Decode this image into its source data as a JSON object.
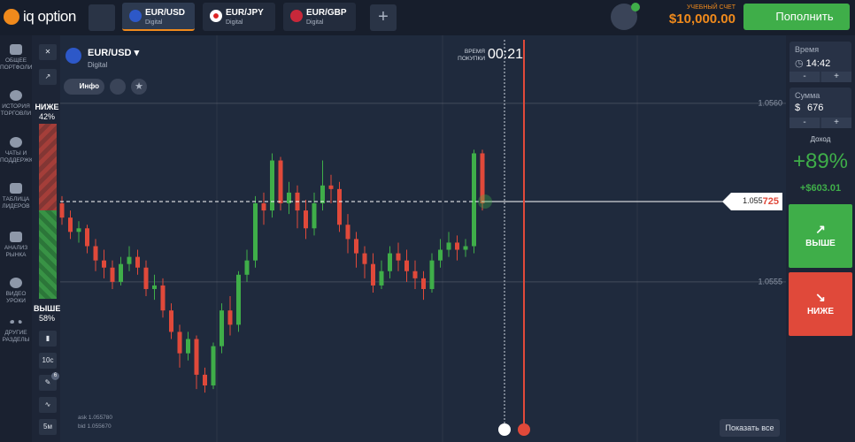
{
  "header": {
    "logo": "iq option",
    "tabs": [
      {
        "name": "EUR/USD",
        "type": "Digital"
      },
      {
        "name": "EUR/JPY",
        "type": "Digital"
      },
      {
        "name": "EUR/GBP",
        "type": "Digital"
      }
    ],
    "account_label": "УЧЕБНЫЙ СЧЕТ",
    "balance": "$10,000.00",
    "deposit_button": "Пополнить"
  },
  "sidebar": {
    "items": [
      "ОБЩЕЕ ПОРТФОЛИО",
      "ИСТОРИЯ ТОРГОВЛИ",
      "ЧАТЫ И ПОДДЕРЖКА",
      "ТАБЛИЦА ЛИДЕРОВ",
      "АНАЛИЗ РЫНКА",
      "ВИДЕО УРОКИ",
      "ДРУГИЕ РАЗДЕЛЫ"
    ]
  },
  "asset": {
    "name": "EUR/USD",
    "type": "Digital",
    "info_button": "Инфо"
  },
  "sentiment": {
    "down_label": "НИЖЕ",
    "down_pct": "42%",
    "up_label": "ВЫШЕ",
    "up_pct": "58%"
  },
  "tools": {
    "indicator_count": "6",
    "interval": "10с",
    "timeframe": "5м"
  },
  "purchase_time": {
    "label": "ВРЕМЯ ПОКУПКИ",
    "value": "00:21"
  },
  "chart_data": {
    "type": "candlestick",
    "ylim": [
      1.055064,
      1.056178
    ],
    "yticks": [
      1.0555,
      {
        "value": 1.056,
        "label": "1.0560"
      }
    ],
    "grid": true,
    "up_color": "#3fae49",
    "down_color": "#e0493a",
    "open": [
      1.05572,
      1.05568,
      1.05564,
      1.05565,
      1.0556,
      1.05556,
      1.05554,
      1.0555,
      1.05555,
      1.05557,
      1.05554,
      1.05548,
      1.05549,
      1.05542,
      1.05536,
      1.0553,
      1.05534,
      1.05524,
      1.05521,
      1.05532,
      1.05542,
      1.05538,
      1.05552,
      1.05556,
      1.05572,
      1.0557,
      1.05584,
      1.05572,
      1.05575,
      1.0557,
      1.05565,
      1.05572,
      1.05577,
      1.05576,
      1.05566,
      1.05562,
      1.05558,
      1.05555,
      1.05549,
      1.05553,
      1.05558,
      1.05556,
      1.05553,
      1.05551,
      1.05548,
      1.05556,
      1.05559,
      1.05561,
      1.05559,
      1.0556,
      1.05586
    ],
    "close": [
      1.05568,
      1.05564,
      1.05565,
      1.0556,
      1.05556,
      1.05554,
      1.0555,
      1.05555,
      1.05557,
      1.05554,
      1.05548,
      1.05549,
      1.05542,
      1.05536,
      1.0553,
      1.05534,
      1.05524,
      1.05521,
      1.05532,
      1.05542,
      1.05538,
      1.05552,
      1.05556,
      1.05572,
      1.0557,
      1.05584,
      1.05572,
      1.05575,
      1.0557,
      1.05565,
      1.05572,
      1.05577,
      1.05576,
      1.05566,
      1.05562,
      1.05558,
      1.05555,
      1.05549,
      1.05553,
      1.05558,
      1.05556,
      1.05553,
      1.05551,
      1.05548,
      1.05556,
      1.05559,
      1.05561,
      1.05559,
      1.0556,
      1.05586,
      1.05572
    ],
    "high": [
      1.05574,
      1.0557,
      1.05567,
      1.05566,
      1.05562,
      1.05559,
      1.05556,
      1.05557,
      1.0556,
      1.05559,
      1.05556,
      1.05552,
      1.05551,
      1.05544,
      1.05538,
      1.05536,
      1.05535,
      1.05526,
      1.05533,
      1.05544,
      1.05546,
      1.05553,
      1.05559,
      1.05574,
      1.05575,
      1.05586,
      1.05585,
      1.05578,
      1.05577,
      1.05573,
      1.05575,
      1.05584,
      1.0558,
      1.05578,
      1.05569,
      1.05564,
      1.0556,
      1.05558,
      1.05556,
      1.0556,
      1.05561,
      1.05559,
      1.05556,
      1.05553,
      1.05558,
      1.05562,
      1.05564,
      1.05563,
      1.05562,
      1.05587,
      1.05587
    ],
    "low": [
      1.05566,
      1.05562,
      1.05561,
      1.05558,
      1.05553,
      1.05551,
      1.05548,
      1.05549,
      1.05553,
      1.05552,
      1.05546,
      1.05545,
      1.0554,
      1.05534,
      1.05526,
      1.05528,
      1.0552,
      1.05519,
      1.0552,
      1.0553,
      1.05535,
      1.05536,
      1.0555,
      1.05554,
      1.05566,
      1.05568,
      1.0557,
      1.05569,
      1.05565,
      1.05562,
      1.05563,
      1.0557,
      1.05572,
      1.05564,
      1.05558,
      1.05554,
      1.05551,
      1.05547,
      1.05548,
      1.05551,
      1.05553,
      1.0555,
      1.05548,
      1.05545,
      1.05547,
      1.05554,
      1.05557,
      1.05556,
      1.05557,
      1.05558,
      1.0557
    ],
    "current_price": {
      "value": 1.055725,
      "label": "1.055725"
    },
    "ask": "ask 1.055780",
    "bid": "bid 1.055670"
  },
  "trade_panel": {
    "time_label": "Время",
    "time_value": "14:42",
    "amount_label": "Сумма",
    "currency": "$",
    "amount_value": "676",
    "minus": "-",
    "plus": "+",
    "profit_label": "Доход",
    "profit_pct": "+89%",
    "profit_amount": "+$603.01",
    "up_button": "ВЫШЕ",
    "down_button": "НИЖЕ"
  },
  "footer": {
    "show_all": "Показать все"
  }
}
